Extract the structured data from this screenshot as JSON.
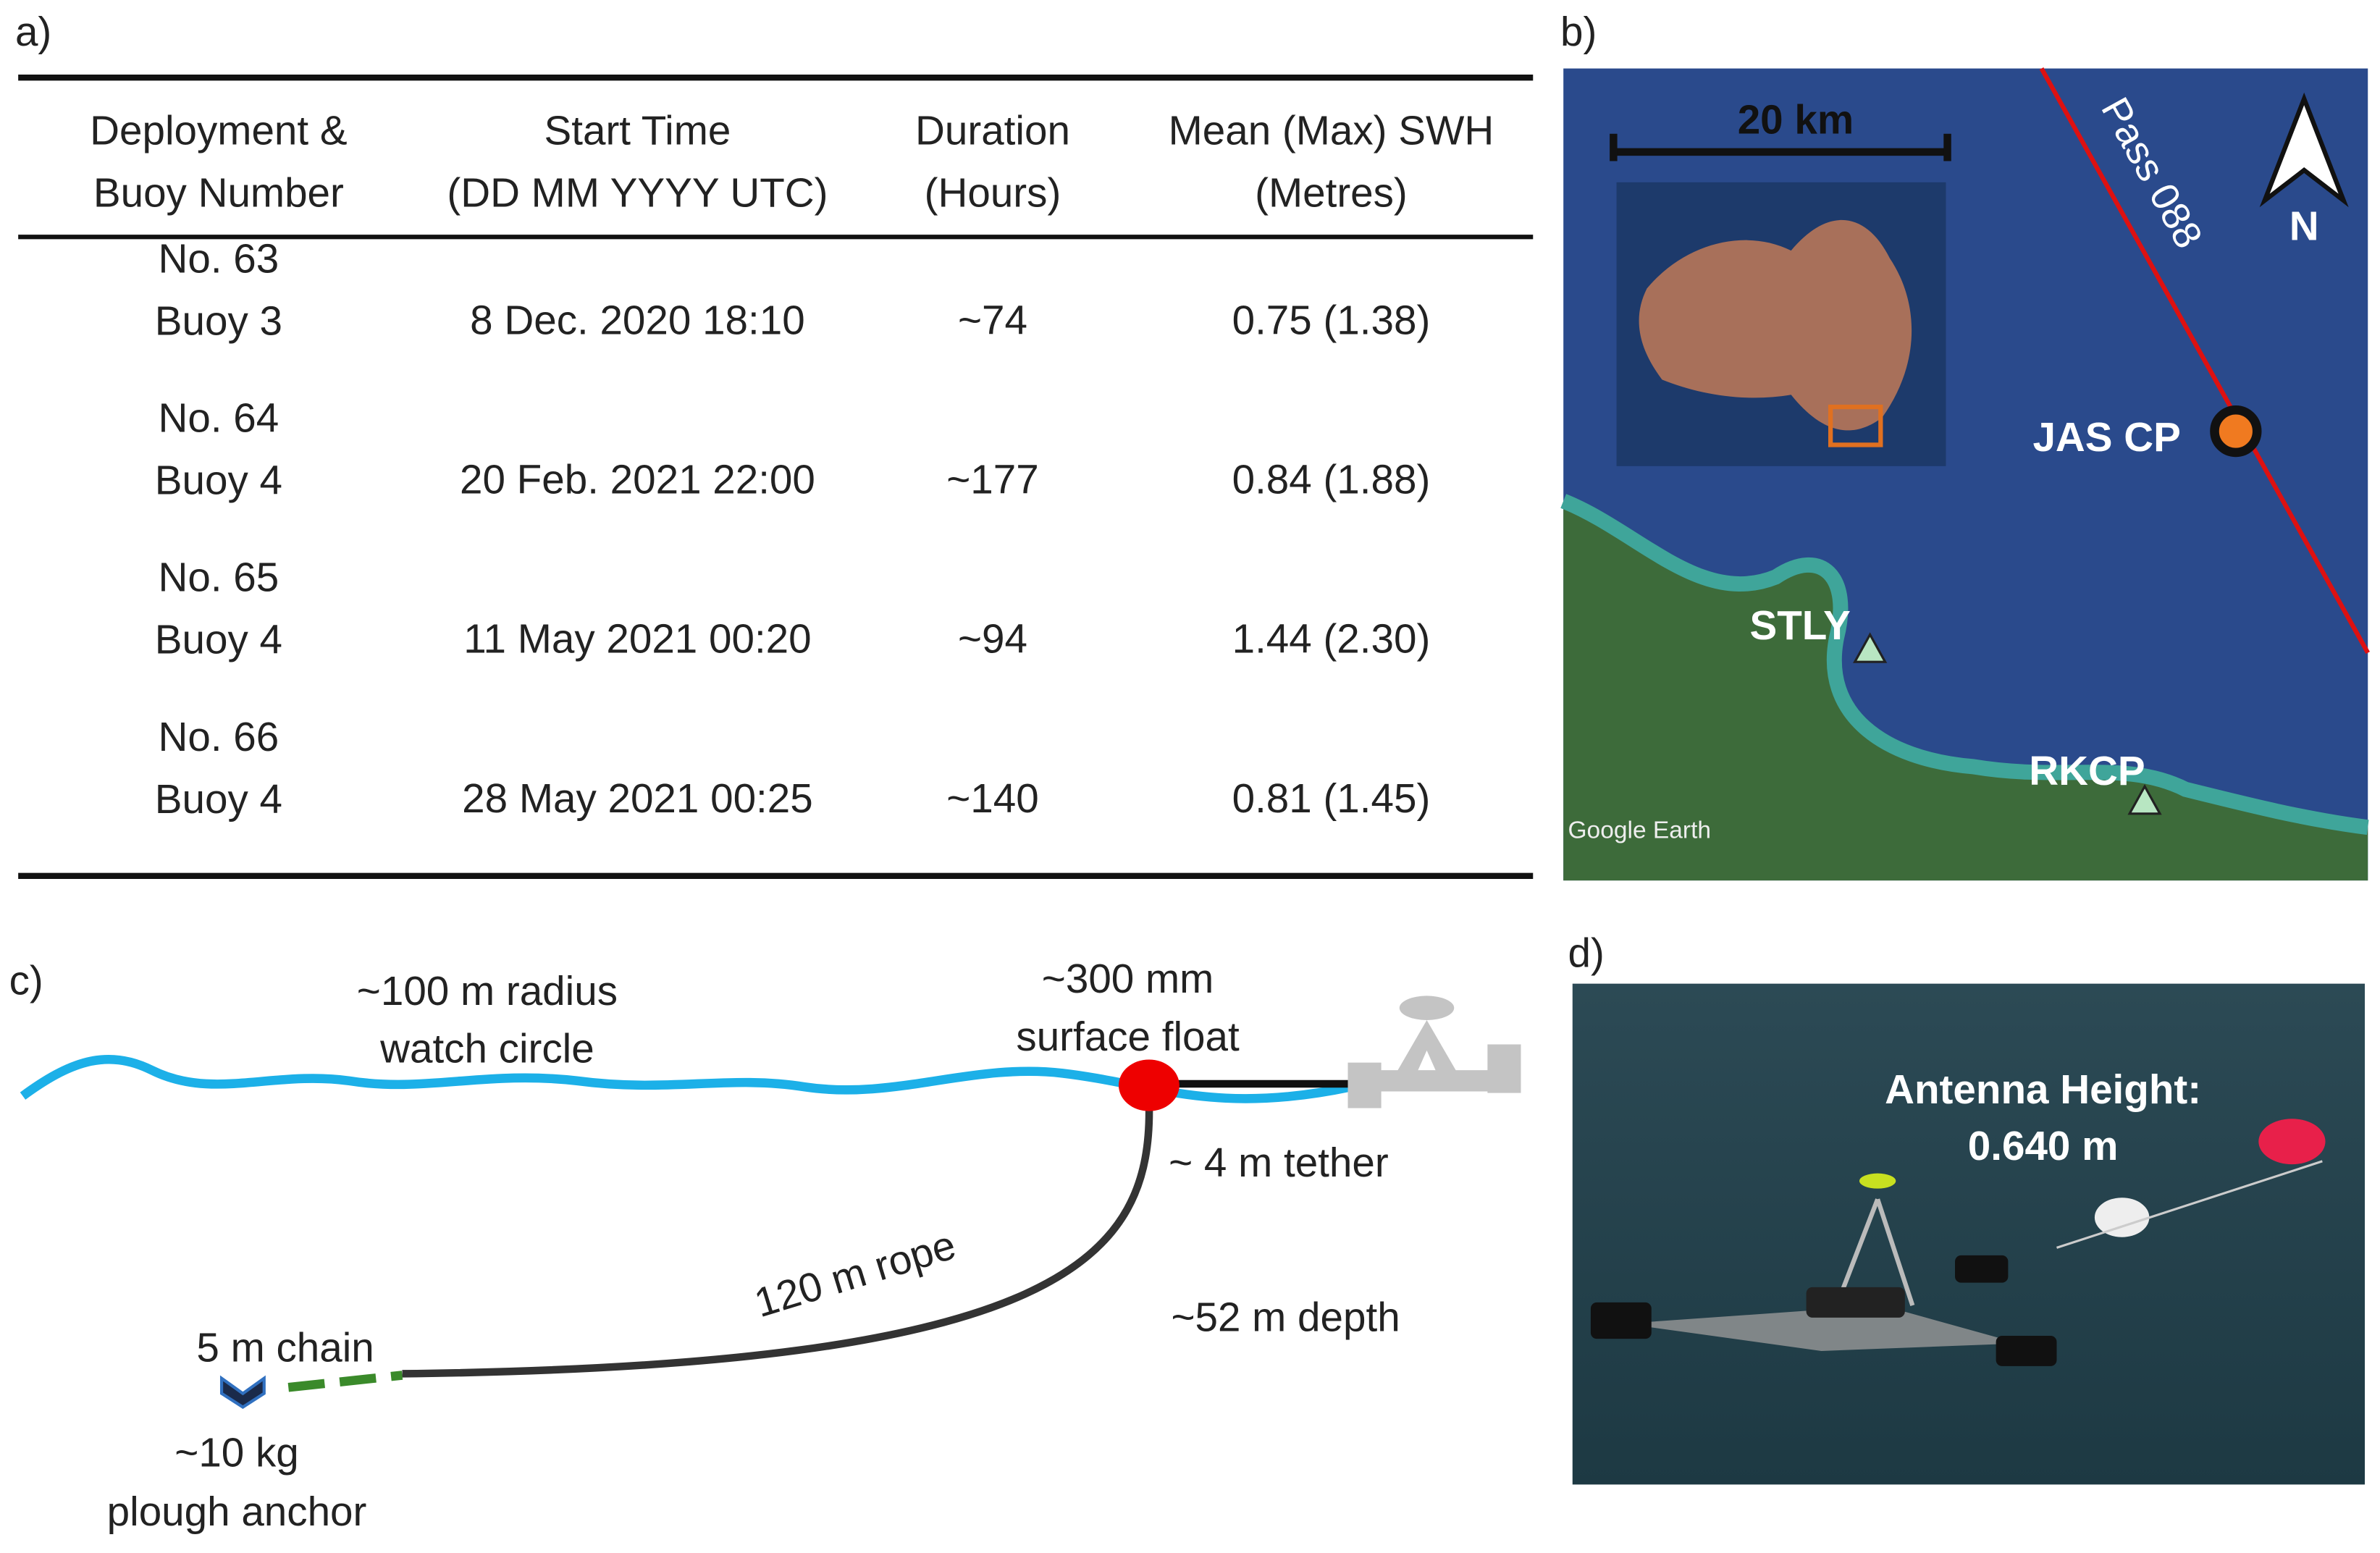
{
  "panel_a": {
    "label": "a)",
    "table": {
      "header": [
        [
          "Deployment &",
          "Buoy Number"
        ],
        [
          "Start Time",
          "(DD MM YYYY UTC)"
        ],
        [
          "Duration",
          "(Hours)"
        ],
        [
          "Mean (Max) SWH",
          "(Metres)"
        ]
      ],
      "rows": [
        [
          [
            "No. 63",
            "Buoy 3"
          ],
          "8 Dec. 2020 18:10",
          "~74",
          "0.75 (1.38)"
        ],
        [
          [
            "No. 64",
            "Buoy 4"
          ],
          "20 Feb. 2021 22:00",
          "~177",
          "0.84 (1.88)"
        ],
        [
          [
            "No. 65",
            "Buoy 4"
          ],
          "11 May 2021 00:20",
          "~94",
          "1.44 (2.30)"
        ],
        [
          [
            "No. 66",
            "Buoy 4"
          ],
          "28 May 2021 00:25",
          "~140",
          "0.81 (1.45)"
        ]
      ]
    }
  },
  "panel_b": {
    "label": "b)",
    "scale_bar": "20 km",
    "north": "N",
    "track": "Pass 088",
    "sites": [
      "JAS CP",
      "STLY",
      "RKCP"
    ],
    "attribution": "Google Earth"
  },
  "panel_c": {
    "label": "c)",
    "watch_circle": [
      "~100 m radius",
      "watch circle"
    ],
    "float": [
      "~300 mm",
      "surface float"
    ],
    "tether": "~ 4 m tether",
    "rope": "120 m rope",
    "depth": "~52 m depth",
    "chain": "5 m chain",
    "anchor": [
      "~10 kg",
      "plough anchor"
    ]
  },
  "panel_d": {
    "label": "d)",
    "annotation": [
      "Antenna Height:",
      "0.640 m"
    ]
  }
}
